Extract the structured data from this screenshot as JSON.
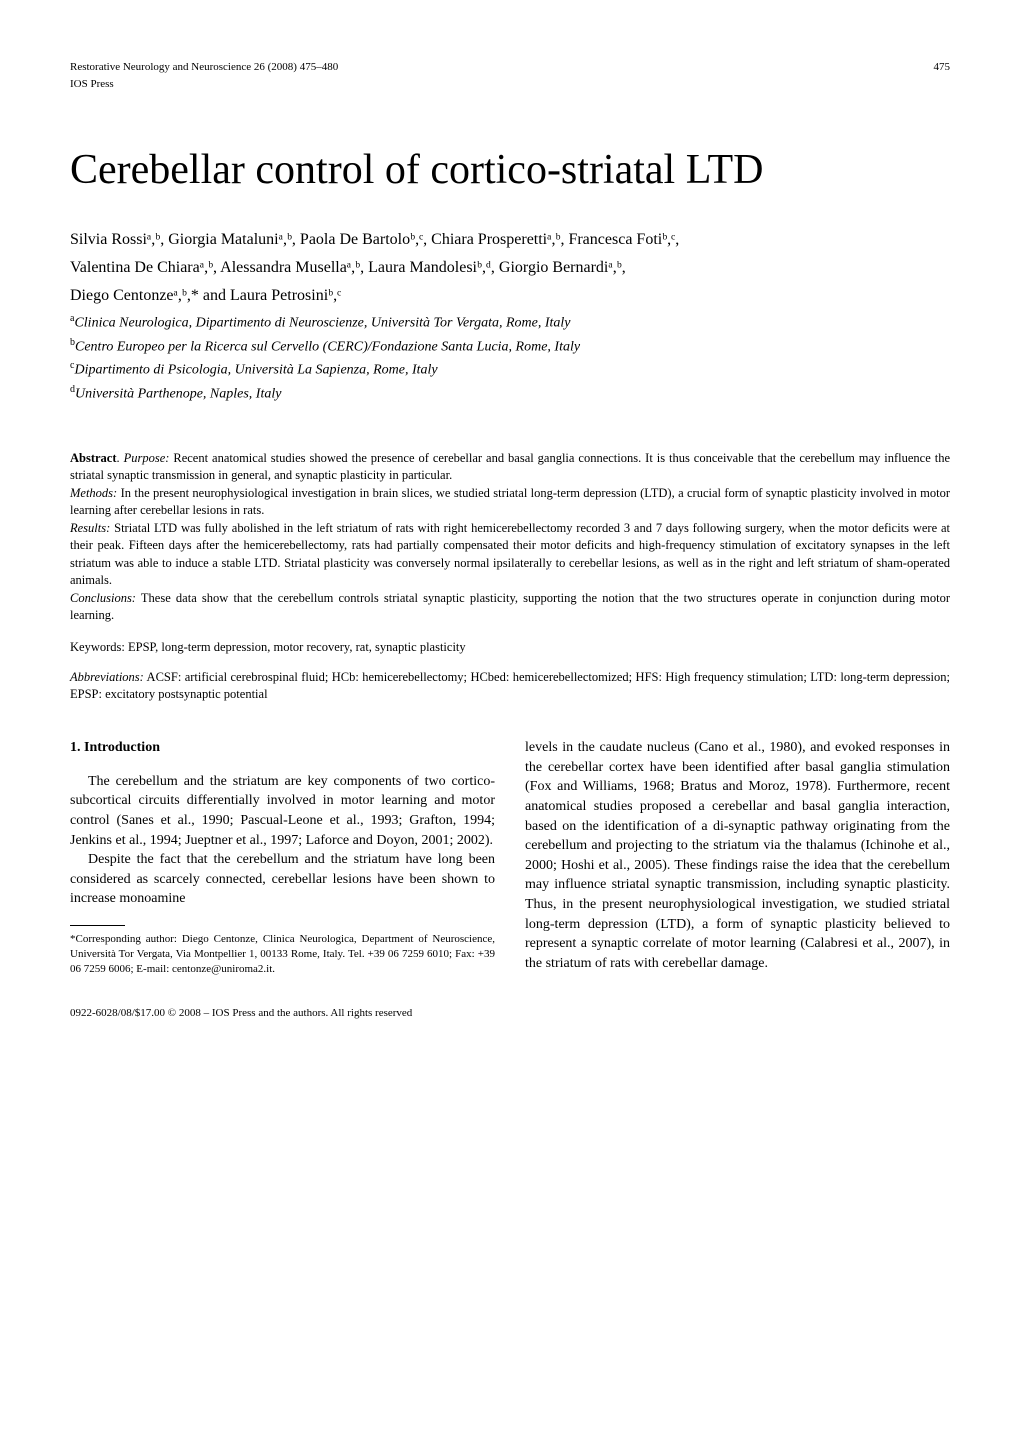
{
  "header": {
    "journal_line1": "Restorative Neurology and Neuroscience 26 (2008) 475–480",
    "journal_line2": "IOS Press",
    "page_number": "475"
  },
  "title": "Cerebellar control of cortico-striatal LTD",
  "authors_line1": "Silvia Rossiᵃ,ᵇ, Giorgia Mataluniᵃ,ᵇ, Paola De Bartoloᵇ,ᶜ, Chiara Prosperettiᵃ,ᵇ, Francesca Fotiᵇ,ᶜ,",
  "authors_line2": "Valentina De Chiaraᵃ,ᵇ, Alessandra Musellaᵃ,ᵇ, Laura Mandolesiᵇ,ᵈ, Giorgio Bernardiᵃ,ᵇ,",
  "authors_line3": "Diego Centonzeᵃ,ᵇ,* and Laura Petrosiniᵇ,ᶜ",
  "affiliation_a": "Clinica Neurologica, Dipartimento di Neuroscienze, Università Tor Vergata, Rome, Italy",
  "affiliation_b": "Centro Europeo per la Ricerca sul Cervello (CERC)/Fondazione Santa Lucia, Rome, Italy",
  "affiliation_c": "Dipartimento di Psicologia, Università La Sapienza, Rome, Italy",
  "affiliation_d": "Università Parthenope, Naples, Italy",
  "abstract": {
    "label": "Abstract",
    "purpose_label": "Purpose:",
    "purpose_text": " Recent anatomical studies showed the presence of cerebellar and basal ganglia connections. It is thus conceivable that the cerebellum may influence the striatal synaptic transmission in general, and synaptic plasticity in particular.",
    "methods_label": "Methods:",
    "methods_text": " In the present neurophysiological investigation in brain slices, we studied striatal long-term depression (LTD), a crucial form of synaptic plasticity involved in motor learning after cerebellar lesions in rats.",
    "results_label": "Results:",
    "results_text": " Striatal LTD was fully abolished in the left striatum of rats with right hemicerebellectomy recorded 3 and 7 days following surgery, when the motor deficits were at their peak. Fifteen days after the hemicerebellectomy, rats had partially compensated their motor deficits and high-frequency stimulation of excitatory synapses in the left striatum was able to induce a stable LTD. Striatal plasticity was conversely normal ipsilaterally to cerebellar lesions, as well as in the right and left striatum of sham-operated animals.",
    "conclusions_label": "Conclusions:",
    "conclusions_text": " These data show that the cerebellum controls striatal synaptic plasticity, supporting the notion that the two structures operate in conjunction during motor learning."
  },
  "keywords_label": "Keywords: ",
  "keywords_text": "EPSP, long-term depression, motor recovery, rat, synaptic plasticity",
  "abbreviations_label": "Abbreviations:",
  "abbreviations_text": " ACSF: artificial cerebrospinal fluid; HCb: hemicerebellectomy; HCbed: hemicerebellectomized; HFS: High frequency stimulation; LTD: long-term depression; EPSP: excitatory postsynaptic potential",
  "section1_heading": "1. Introduction",
  "left_col_p1": "The cerebellum and the striatum are key components of two cortico-subcortical circuits differentially involved in motor learning and motor control (Sanes et al., 1990; Pascual-Leone et al., 1993; Grafton, 1994; Jenkins et al., 1994; Jueptner et al., 1997; Laforce and Doyon, 2001; 2002).",
  "left_col_p2": "Despite the fact that the cerebellum and the striatum have long been considered as scarcely connected, cerebellar lesions have been shown to increase monoamine",
  "right_col_p1": "levels in the caudate nucleus (Cano et al., 1980), and evoked responses in the cerebellar cortex have been identified after basal ganglia stimulation (Fox and Williams, 1968; Bratus and Moroz, 1978). Furthermore, recent anatomical studies proposed a cerebellar and basal ganglia interaction, based on the identification of a di-synaptic pathway originating from the cerebellum and projecting to the striatum via the thalamus (Ichinohe et al., 2000; Hoshi et al., 2005). These findings raise the idea that the cerebellum may influence striatal synaptic transmission, including synaptic plasticity. Thus, in the present neurophysiological investigation, we studied striatal long-term depression (LTD), a form of synaptic plasticity believed to represent a synaptic correlate of motor learning (Calabresi et al., 2007), in the striatum of rats with cerebellar damage.",
  "footnote_text": "*Corresponding author: Diego Centonze, Clinica Neurologica, Department of Neuroscience, Università Tor Vergata, Via Montpellier 1, 00133 Rome, Italy. Tel. +39 06 7259 6010; Fax: +39 06 7259 6006; E-mail: centonze@uniroma2.it.",
  "footer_text": "0922-6028/08/$17.00 © 2008 – IOS Press and the authors. All rights reserved",
  "colors": {
    "text": "#000000",
    "background": "#ffffff"
  },
  "typography": {
    "title_fontsize": 42,
    "body_fontsize": 14,
    "abstract_fontsize": 12.5,
    "header_fontsize": 11,
    "footnote_fontsize": 11,
    "authors_fontsize": 16,
    "affiliation_fontsize": 14,
    "font_family": "Times New Roman"
  }
}
